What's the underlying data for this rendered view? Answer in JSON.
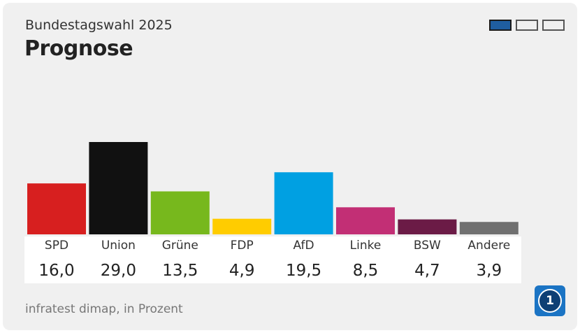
{
  "header": {
    "supertitle": "Bundestagswahl 2025",
    "title": "Prognose"
  },
  "pager": {
    "pages": 3,
    "active": 1
  },
  "footer": {
    "source": "infratest dimap, in Prozent",
    "logo_text": "1"
  },
  "chart_data": {
    "type": "bar",
    "categories": [
      "SPD",
      "Union",
      "Grüne",
      "FDP",
      "AfD",
      "Linke",
      "BSW",
      "Andere"
    ],
    "values": [
      16.0,
      29.0,
      13.5,
      4.9,
      19.5,
      8.5,
      4.7,
      3.9
    ],
    "value_labels": [
      "16,0",
      "29,0",
      "13,5",
      "4,9",
      "19,5",
      "8,5",
      "4,7",
      "3,9"
    ],
    "colors": [
      "#d71f1f",
      "#111111",
      "#77b81d",
      "#ffcc00",
      "#00a0e2",
      "#c22f75",
      "#6b1b46",
      "#707070"
    ],
    "ylim": [
      0,
      29
    ],
    "grid": false
  }
}
